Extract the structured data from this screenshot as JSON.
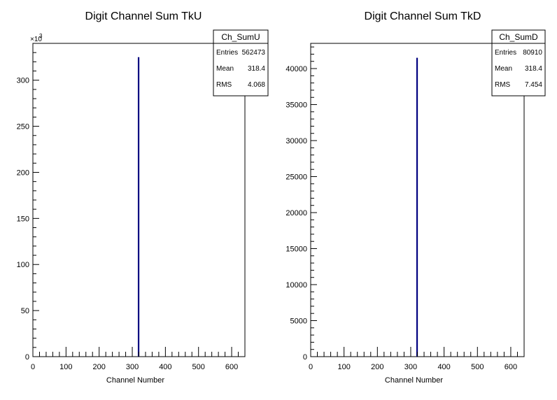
{
  "chart_data": [
    {
      "type": "bar",
      "title": "Digit Channel Sum TkU",
      "xlabel": "Channel Number",
      "ylabel": "",
      "xlim": [
        0,
        640
      ],
      "ylim": [
        0,
        340000
      ],
      "x_ticks": [
        0,
        100,
        200,
        300,
        400,
        500,
        600
      ],
      "y_ticks": [
        0,
        50000,
        100000,
        150000,
        200000,
        250000,
        300000
      ],
      "y_tick_labels": [
        "0",
        "50",
        "100",
        "150",
        "200",
        "250",
        "300"
      ],
      "y_exponent_label": "×10",
      "y_exponent_power": "3",
      "series": [
        {
          "x": [
            318
          ],
          "values": [
            325000
          ],
          "color": "#000080"
        }
      ],
      "stats": {
        "name": "Ch_SumU",
        "rows": [
          {
            "label": "Entries",
            "value": "562473"
          },
          {
            "label": "Mean",
            "value": "318.4"
          },
          {
            "label": "RMS",
            "value": "4.068"
          }
        ]
      }
    },
    {
      "type": "bar",
      "title": "Digit Channel Sum TkD",
      "xlabel": "Channel Number",
      "ylabel": "",
      "xlim": [
        0,
        640
      ],
      "ylim": [
        0,
        43500
      ],
      "x_ticks": [
        0,
        100,
        200,
        300,
        400,
        500,
        600
      ],
      "y_ticks": [
        0,
        5000,
        10000,
        15000,
        20000,
        25000,
        30000,
        35000,
        40000
      ],
      "y_tick_labels": [
        "0",
        "5000",
        "10000",
        "15000",
        "20000",
        "25000",
        "30000",
        "35000",
        "40000"
      ],
      "series": [
        {
          "x": [
            318
          ],
          "values": [
            41500
          ],
          "color": "#000080"
        }
      ],
      "stats": {
        "name": "Ch_SumD",
        "rows": [
          {
            "label": "Entries",
            "value": "80910"
          },
          {
            "label": "Mean",
            "value": "318.4"
          },
          {
            "label": "RMS",
            "value": "7.454"
          }
        ]
      }
    }
  ]
}
